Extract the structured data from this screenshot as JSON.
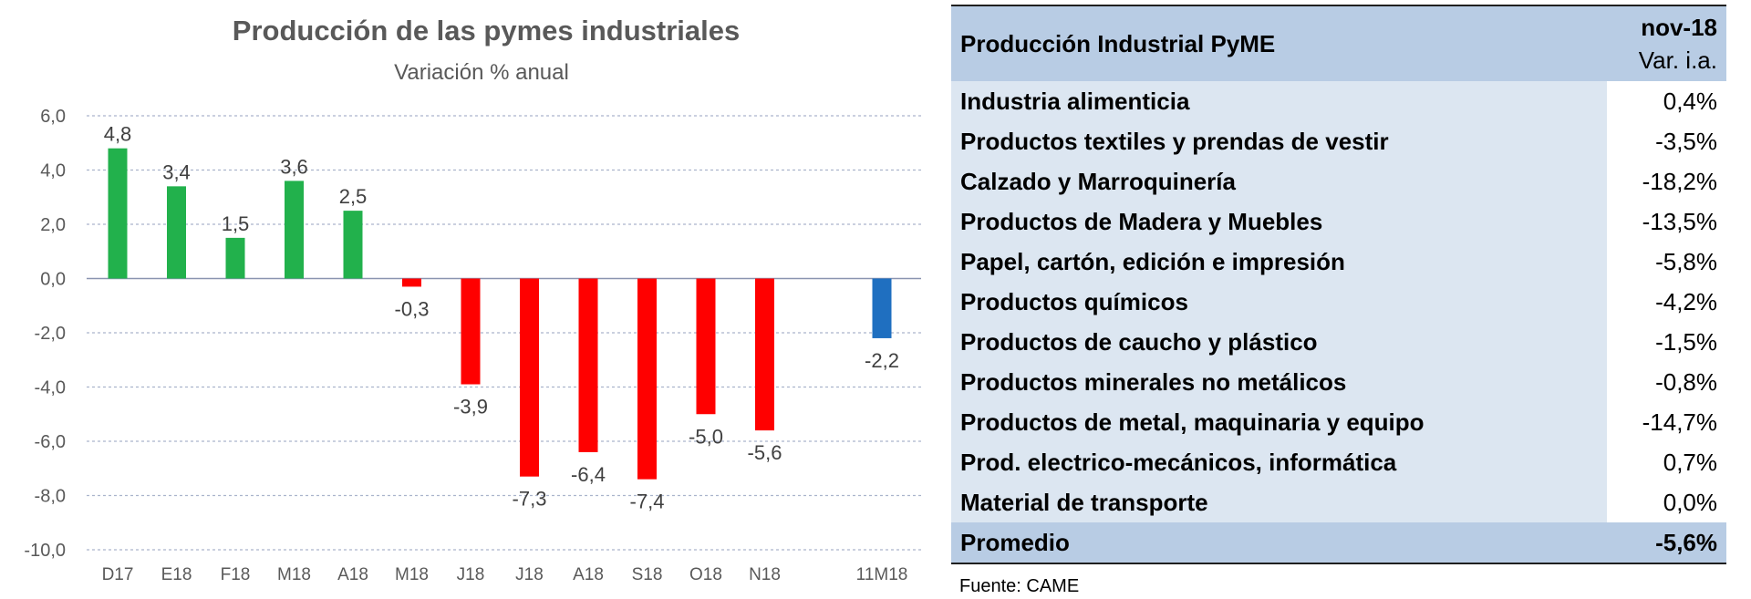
{
  "chart_data": {
    "type": "bar",
    "title": "Producción de las pymes industriales",
    "subtitle": "Variación % anual",
    "ylim": [
      -10,
      6
    ],
    "yticks": [
      "6,0",
      "4,0",
      "2,0",
      "0,0",
      "-2,0",
      "-4,0",
      "-6,0",
      "-8,0",
      "-10,0"
    ],
    "ytick_values": [
      6,
      4,
      2,
      0,
      -2,
      -4,
      -6,
      -8,
      -10
    ],
    "grid": true,
    "categories": [
      "D17",
      "E18",
      "F18",
      "M18",
      "A18",
      "M18",
      "J18",
      "J18",
      "A18",
      "S18",
      "O18",
      "N18",
      "11M18"
    ],
    "values": [
      4.8,
      3.4,
      1.5,
      3.6,
      2.5,
      -0.3,
      -3.9,
      -7.3,
      -6.4,
      -7.4,
      -5.0,
      -5.6,
      -2.2
    ],
    "value_labels": [
      "4,8",
      "3,4",
      "1,5",
      "3,6",
      "2,5",
      "-0,3",
      "-3,9",
      "-7,3",
      "-6,4",
      "-7,4",
      "-5,0",
      "-5,6",
      "-2,2"
    ],
    "colors": {
      "positive": "#22b14c",
      "negative": "#ff0000",
      "cumulative": "#1f6fc0"
    }
  },
  "table": {
    "header_label": "Producción Industrial PyME",
    "period": "nov-18",
    "metric": "Var. i.a.",
    "rows": [
      {
        "sector": "Industria alimenticia",
        "value": "0,4%"
      },
      {
        "sector": "Productos textiles y prendas de vestir",
        "value": "-3,5%"
      },
      {
        "sector": "Calzado y Marroquinería",
        "value": "-18,2%"
      },
      {
        "sector": "Productos de Madera y Muebles",
        "value": "-13,5%"
      },
      {
        "sector": "Papel, cartón, edición e impresión",
        "value": "-5,8%"
      },
      {
        "sector": "Productos químicos",
        "value": "-4,2%"
      },
      {
        "sector": "Productos de caucho y plástico",
        "value": "-1,5%"
      },
      {
        "sector": "Productos minerales no metálicos",
        "value": "-0,8%"
      },
      {
        "sector": "Productos de metal, maquinaria y equipo",
        "value": "-14,7%"
      },
      {
        "sector": "Prod. electrico-mecánicos, informática",
        "value": "0,7%"
      },
      {
        "sector": "Material de transporte",
        "value": "0,0%"
      }
    ],
    "total_label": "Promedio",
    "total_value": "-5,6%"
  },
  "source": "Fuente: CAME"
}
